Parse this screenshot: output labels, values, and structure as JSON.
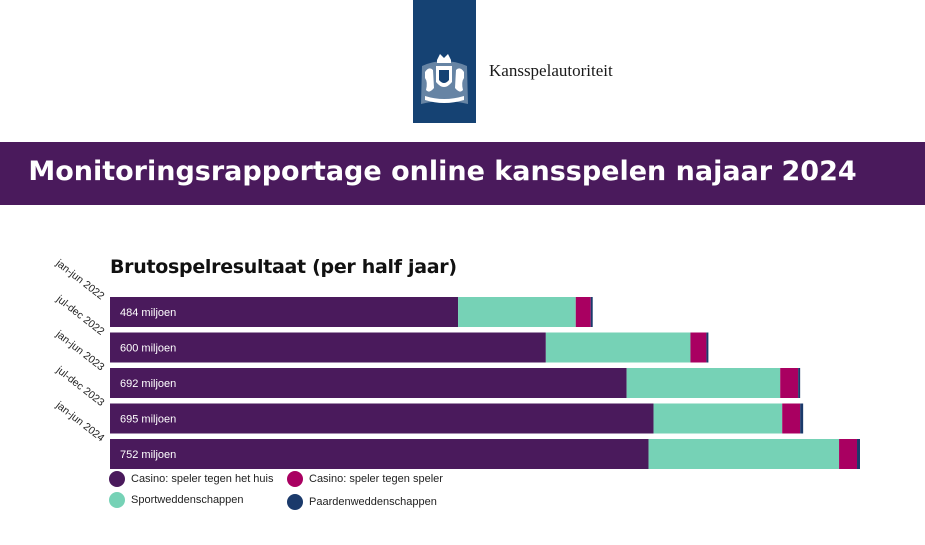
{
  "header": {
    "org_name": "Kansspelautoriteit",
    "logo_icon": "royal-coat-of-arms-icon",
    "report_title": "Monitoringsrapportage online kansspelen najaar 2024"
  },
  "colors": {
    "brand_blue": "#154273",
    "banner_purple": "#4a1a5c"
  },
  "chart_data": {
    "type": "bar",
    "orientation": "horizontal",
    "stacked": true,
    "title": "Brutospelresultaat (per half jaar)",
    "unit": "miljoen",
    "categories": [
      "jan-jun 2022",
      "jul-dec 2022",
      "jan-jun 2023",
      "jul-dec 2023",
      "jan-jun 2024"
    ],
    "totals": [
      484,
      600,
      692,
      695,
      752
    ],
    "total_labels": [
      "484 miljoen",
      "600 miljoen",
      "692 miljoen",
      "695 miljoen",
      "752 miljoen"
    ],
    "series": [
      {
        "name": "Casino: speler tegen het huis",
        "color": "#4a1a5c",
        "values": [
          349,
          437,
          518,
          545,
          540
        ]
      },
      {
        "name": "Sportweddenschappen",
        "color": "#76d2b6",
        "values": [
          118,
          145,
          154,
          129,
          191
        ]
      },
      {
        "name": "Casino: speler tegen speler",
        "color": "#a90061",
        "values": [
          15,
          16,
          18,
          18,
          18
        ]
      },
      {
        "name": "Paardenweddenschappen",
        "color": "#1b3a6b",
        "values": [
          2,
          2,
          2,
          3,
          3
        ]
      }
    ],
    "xlim": [
      0,
      752
    ],
    "grid": false,
    "legend_position": "bottom-left"
  }
}
